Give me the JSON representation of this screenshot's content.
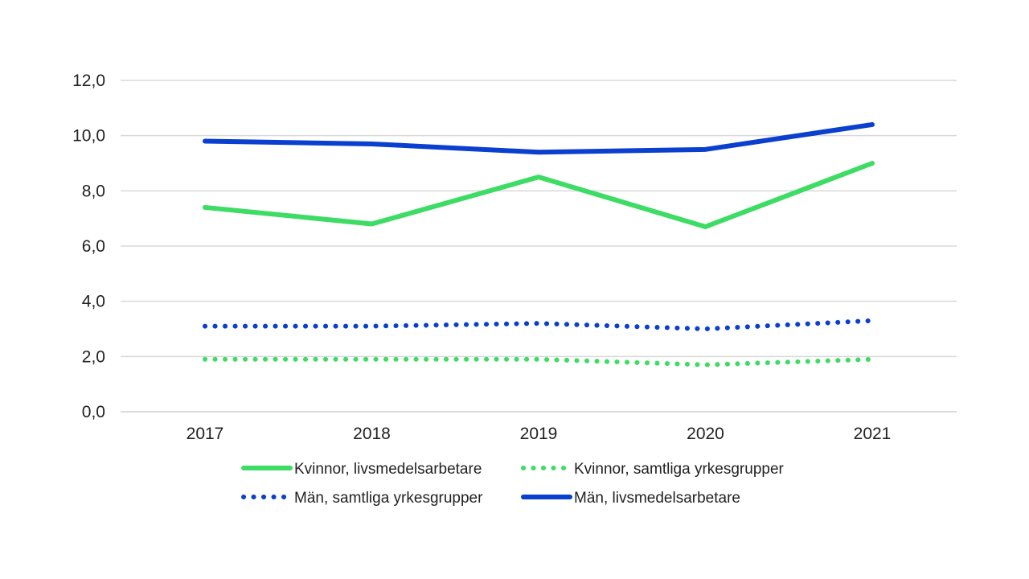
{
  "chart_data": {
    "type": "line",
    "categories": [
      "2017",
      "2018",
      "2019",
      "2020",
      "2021"
    ],
    "ylim": [
      0,
      12
    ],
    "yticks": [
      "0,0",
      "2,0",
      "4,0",
      "6,0",
      "8,0",
      "10,0",
      "12,0"
    ],
    "grid": true,
    "legend_position": "bottom",
    "series": [
      {
        "name": "Kvinnor, livsmedelsarbetare",
        "values": [
          7.4,
          6.8,
          8.5,
          6.7,
          9.0
        ],
        "color": "#3ddc64",
        "style": "solid"
      },
      {
        "name": "Kvinnor, samtliga yrkesgrupper",
        "values": [
          1.9,
          1.9,
          1.9,
          1.7,
          1.9
        ],
        "color": "#3ddc64",
        "style": "dotted"
      },
      {
        "name": "Män, samtliga yrkesgrupper",
        "values": [
          3.1,
          3.1,
          3.2,
          3.0,
          3.3
        ],
        "color": "#0a3fcf",
        "style": "dotted"
      },
      {
        "name": "Män, livsmedelsarbetare",
        "values": [
          9.8,
          9.7,
          9.4,
          9.5,
          10.4
        ],
        "color": "#0a3fcf",
        "style": "solid"
      }
    ]
  }
}
